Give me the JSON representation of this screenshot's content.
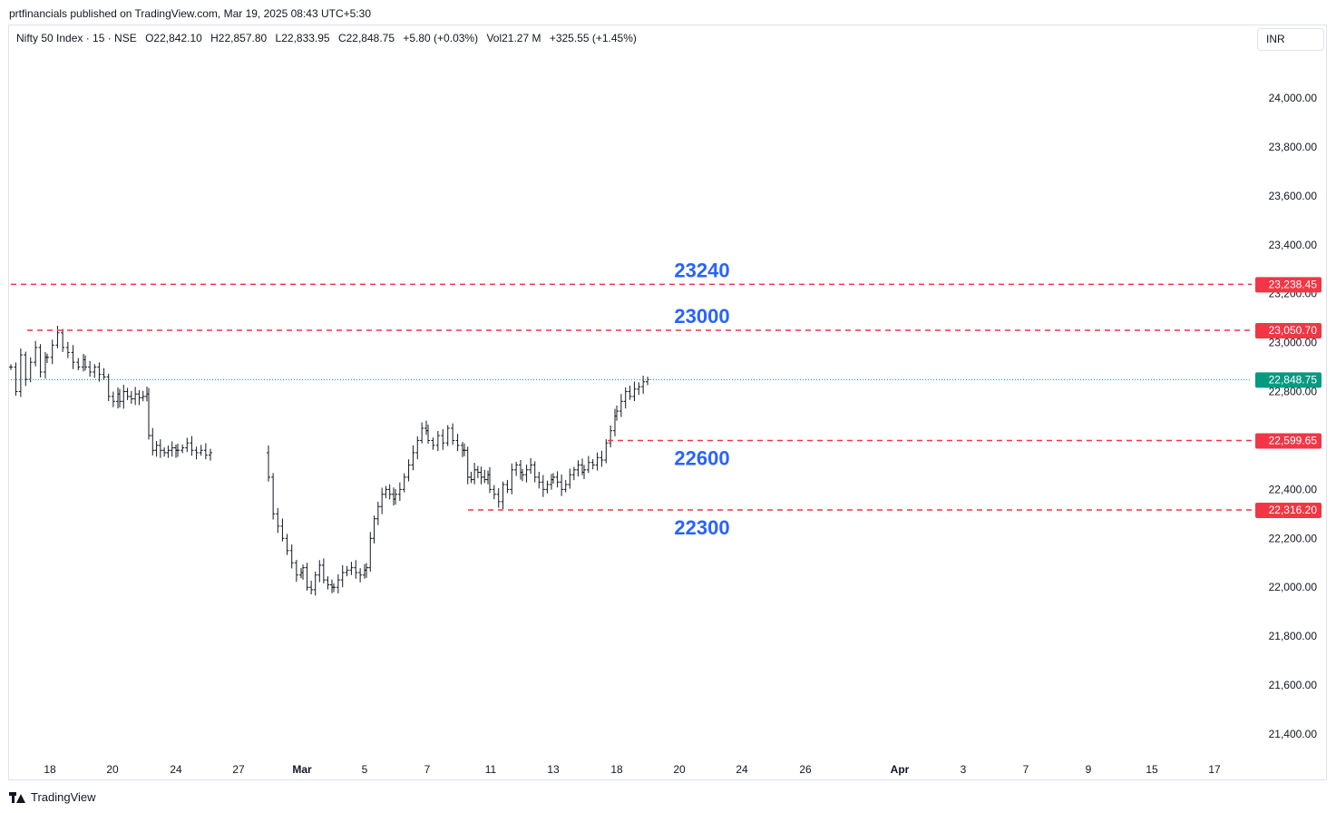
{
  "publisher_line": "prtfinancials published on TradingView.com, Mar 19, 2025 08:43 UTC+5:30",
  "legend": {
    "symbol": "Nifty 50 Index · 15 · NSE",
    "open": "O22,842.10",
    "high": "H22,857.80",
    "low": "L22,833.95",
    "close": "C22,848.75",
    "change": "+5.80 (+0.03%)",
    "volume": "Vol21.27 M",
    "change2": "+325.55 (+1.45%)"
  },
  "currency": "INR",
  "footer": {
    "brand": "TradingView",
    "logo_icon": "tradingview-logo-icon"
  },
  "colors": {
    "up_down_bars": "#131722",
    "level_line": "#f23645",
    "annotation": "#2962ff",
    "last_price": "#089981"
  },
  "chart_data": {
    "type": "ohlc",
    "ylim": [
      21300,
      24200
    ],
    "y_ticks": [
      "21,400.00",
      "21,600.00",
      "21,800.00",
      "22,000.00",
      "22,200.00",
      "22,400.00",
      "22,600.00",
      "22,800.00",
      "23,000.00",
      "23,200.00",
      "23,400.00",
      "23,600.00",
      "23,800.00",
      "24,000.00"
    ],
    "y_tick_values": [
      21400,
      21600,
      21800,
      22000,
      22200,
      22400,
      22600,
      22800,
      23000,
      23200,
      23400,
      23600,
      23800,
      24000
    ],
    "x_ticks": [
      "18",
      "20",
      "24",
      "27",
      "Mar",
      "5",
      "7",
      "11",
      "13",
      "18",
      "20",
      "24",
      "26",
      "Apr",
      "3",
      "7",
      "9",
      "15",
      "17"
    ],
    "x_tick_bold": [
      "Mar",
      "Apr"
    ],
    "price_series": [
      {
        "session": "Feb 18",
        "points": [
          22900,
          22800,
          22950,
          22850,
          22920,
          22980,
          22880,
          22940
        ]
      },
      {
        "session": "Feb 19",
        "points": [
          22940,
          22990,
          23040,
          22980,
          22960,
          22920,
          22900,
          22930
        ]
      },
      {
        "session": "Feb 20",
        "points": [
          22900,
          22880,
          22900,
          22870,
          22860,
          22780,
          22760,
          22790
        ]
      },
      {
        "session": "Feb 21",
        "points": [
          22760,
          22800,
          22780,
          22770,
          22790,
          22775,
          22780,
          22790
        ]
      },
      {
        "session": "Feb 24",
        "points": [
          22620,
          22560,
          22580,
          22560,
          22550,
          22560,
          22570,
          22560
        ]
      },
      {
        "session": "Feb 25",
        "points": [
          22560,
          22570,
          22590,
          22560,
          22550,
          22560,
          22540,
          22550
        ]
      },
      {
        "session": "Feb 27",
        "points": [
          22450,
          22300,
          22250,
          22200,
          22150,
          22100,
          22050,
          22060
        ]
      },
      {
        "session": "Feb 28",
        "points": [
          22080,
          22000,
          21990,
          22050,
          22090,
          22030,
          22010,
          22000
        ]
      },
      {
        "session": "Mar 3",
        "points": [
          22000,
          22030,
          22060,
          22070,
          22080,
          22060,
          22050,
          22070
        ]
      },
      {
        "session": "Mar 4",
        "points": [
          22080,
          22200,
          22280,
          22330,
          22380,
          22400,
          22380,
          22360
        ]
      },
      {
        "session": "Mar 5",
        "points": [
          22380,
          22400,
          22450,
          22500,
          22550,
          22600,
          22650,
          22640
        ]
      },
      {
        "session": "Mar 7",
        "points": [
          22600,
          22580,
          22620,
          22590,
          22650,
          22600,
          22580,
          22560
        ]
      },
      {
        "session": "Mar 10",
        "points": [
          22560,
          22450,
          22440,
          22480,
          22470,
          22450,
          22440,
          22460
        ]
      },
      {
        "session": "Mar 11",
        "points": [
          22400,
          22380,
          22350,
          22420,
          22400,
          22480,
          22500,
          22470
        ]
      },
      {
        "session": "Mar 12",
        "points": [
          22460,
          22480,
          22500,
          22450,
          22430,
          22400,
          22420,
          22440
        ]
      },
      {
        "session": "Mar 13",
        "points": [
          22450,
          22430,
          22400,
          22420,
          22460,
          22480,
          22500,
          22470
        ]
      },
      {
        "session": "Mar 17",
        "points": [
          22480,
          22510,
          22500,
          22530,
          22520,
          22590,
          22640,
          22700
        ]
      },
      {
        "session": "Mar 18",
        "points": [
          22720,
          22760,
          22800,
          22780,
          22810,
          22820,
          22840,
          22849
        ]
      }
    ],
    "levels": [
      {
        "value": 23238.45,
        "label": "23,238.45",
        "annotation": "23240"
      },
      {
        "value": 23050.7,
        "label": "23,050.70",
        "annotation": "23000"
      },
      {
        "value": 22599.65,
        "label": "22,599.65",
        "annotation": "22600"
      },
      {
        "value": 22316.2,
        "label": "22,316.20",
        "annotation": "22300"
      }
    ],
    "last_price": {
      "value": 22848.75,
      "label": "22,848.75"
    }
  }
}
